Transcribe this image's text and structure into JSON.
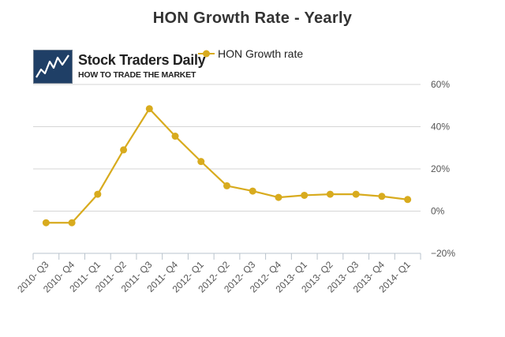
{
  "logo": {
    "name": "Stock Traders Daily",
    "tagline": "HOW TO TRADE THE MARKET",
    "icon": "line-chart-logo-icon"
  },
  "colors": {
    "series": "#d8ab1e",
    "grid": "#d6d6d6",
    "text": "#333333"
  },
  "chart_data": {
    "type": "line",
    "title": "HON Growth Rate - Yearly",
    "xlabel": "",
    "ylabel": "",
    "categories": [
      "2010- Q3",
      "2010- Q4",
      "2011- Q1",
      "2011- Q2",
      "2011- Q3",
      "2011- Q4",
      "2012- Q1",
      "2012- Q2",
      "2012- Q3",
      "2012- Q4",
      "2013- Q1",
      "2013- Q2",
      "2013- Q3",
      "2013- Q4",
      "2014- Q1"
    ],
    "series": [
      {
        "name": "HON Growth rate",
        "values": [
          -5.5,
          -5.5,
          8,
          29,
          48.5,
          35.5,
          23.5,
          12,
          9.5,
          6.5,
          7.5,
          8,
          8,
          7,
          5.5
        ]
      }
    ],
    "ylim": [
      -20,
      60
    ],
    "yticks": [
      -20,
      0,
      20,
      40,
      60
    ],
    "ytick_labels": [
      "−20%",
      "0%",
      "20%",
      "40%",
      "60%"
    ],
    "y_axis_side": "right",
    "grid": true,
    "legend": "top-center"
  }
}
